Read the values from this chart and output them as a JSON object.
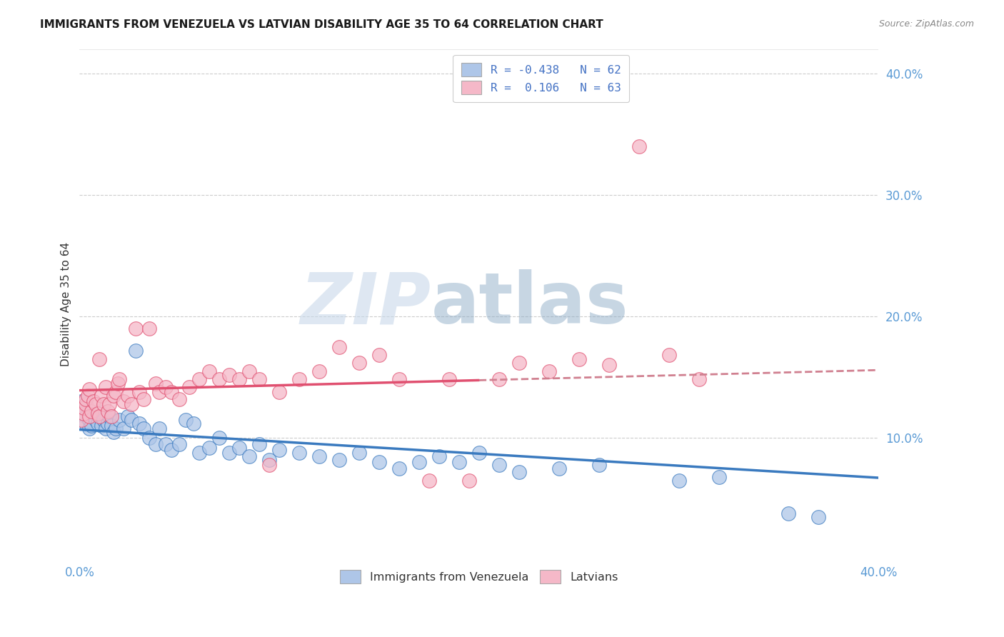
{
  "title": "IMMIGRANTS FROM VENEZUELA VS LATVIAN DISABILITY AGE 35 TO 64 CORRELATION CHART",
  "source": "Source: ZipAtlas.com",
  "ylabel": "Disability Age 35 to 64",
  "xlim": [
    0.0,
    0.4
  ],
  "ylim": [
    0.0,
    0.42
  ],
  "yticks": [
    0.1,
    0.2,
    0.3,
    0.4
  ],
  "ytick_labels": [
    "10.0%",
    "20.0%",
    "30.0%",
    "40.0%"
  ],
  "legend_entry1": "R = -0.438   N = 62",
  "legend_entry2": "R =  0.106   N = 63",
  "legend_label1": "Immigrants from Venezuela",
  "legend_label2": "Latvians",
  "color_blue": "#aec6e8",
  "color_pink": "#f5b8c8",
  "line_blue": "#3a7abf",
  "line_pink": "#e05070",
  "line_dashed_color": "#d08090",
  "watermark_zip": "ZIP",
  "watermark_atlas": "atlas",
  "R1": -0.438,
  "N1": 62,
  "R2": 0.106,
  "N2": 63,
  "blue_points_x": [
    0.001,
    0.002,
    0.003,
    0.003,
    0.004,
    0.005,
    0.005,
    0.006,
    0.007,
    0.008,
    0.009,
    0.01,
    0.011,
    0.012,
    0.013,
    0.014,
    0.015,
    0.016,
    0.017,
    0.018,
    0.02,
    0.022,
    0.024,
    0.026,
    0.028,
    0.03,
    0.032,
    0.035,
    0.038,
    0.04,
    0.043,
    0.046,
    0.05,
    0.053,
    0.057,
    0.06,
    0.065,
    0.07,
    0.075,
    0.08,
    0.085,
    0.09,
    0.095,
    0.1,
    0.11,
    0.12,
    0.13,
    0.14,
    0.15,
    0.16,
    0.17,
    0.18,
    0.19,
    0.2,
    0.21,
    0.22,
    0.24,
    0.26,
    0.3,
    0.32,
    0.355,
    0.37
  ],
  "blue_points_y": [
    0.13,
    0.125,
    0.118,
    0.112,
    0.12,
    0.115,
    0.108,
    0.11,
    0.118,
    0.115,
    0.112,
    0.122,
    0.11,
    0.115,
    0.108,
    0.112,
    0.118,
    0.11,
    0.105,
    0.108,
    0.115,
    0.108,
    0.118,
    0.115,
    0.172,
    0.112,
    0.108,
    0.1,
    0.095,
    0.108,
    0.095,
    0.09,
    0.095,
    0.115,
    0.112,
    0.088,
    0.092,
    0.1,
    0.088,
    0.092,
    0.085,
    0.095,
    0.082,
    0.09,
    0.088,
    0.085,
    0.082,
    0.088,
    0.08,
    0.075,
    0.08,
    0.085,
    0.08,
    0.088,
    0.078,
    0.072,
    0.075,
    0.078,
    0.065,
    0.068,
    0.038,
    0.035
  ],
  "pink_points_x": [
    0.001,
    0.002,
    0.002,
    0.003,
    0.003,
    0.004,
    0.005,
    0.005,
    0.006,
    0.007,
    0.008,
    0.009,
    0.01,
    0.01,
    0.011,
    0.012,
    0.013,
    0.014,
    0.015,
    0.016,
    0.017,
    0.018,
    0.019,
    0.02,
    0.022,
    0.024,
    0.026,
    0.028,
    0.03,
    0.032,
    0.035,
    0.038,
    0.04,
    0.043,
    0.046,
    0.05,
    0.055,
    0.06,
    0.065,
    0.07,
    0.075,
    0.08,
    0.085,
    0.09,
    0.095,
    0.1,
    0.11,
    0.12,
    0.13,
    0.14,
    0.15,
    0.16,
    0.175,
    0.185,
    0.195,
    0.21,
    0.22,
    0.235,
    0.25,
    0.265,
    0.28,
    0.295,
    0.31
  ],
  "pink_points_y": [
    0.115,
    0.12,
    0.125,
    0.128,
    0.132,
    0.135,
    0.14,
    0.118,
    0.122,
    0.13,
    0.128,
    0.12,
    0.165,
    0.118,
    0.135,
    0.128,
    0.142,
    0.122,
    0.128,
    0.118,
    0.135,
    0.138,
    0.145,
    0.148,
    0.13,
    0.135,
    0.128,
    0.19,
    0.138,
    0.132,
    0.19,
    0.145,
    0.138,
    0.142,
    0.138,
    0.132,
    0.142,
    0.148,
    0.155,
    0.148,
    0.152,
    0.148,
    0.155,
    0.148,
    0.078,
    0.138,
    0.148,
    0.155,
    0.175,
    0.162,
    0.168,
    0.148,
    0.065,
    0.148,
    0.065,
    0.148,
    0.162,
    0.155,
    0.165,
    0.16,
    0.34,
    0.168,
    0.148
  ]
}
